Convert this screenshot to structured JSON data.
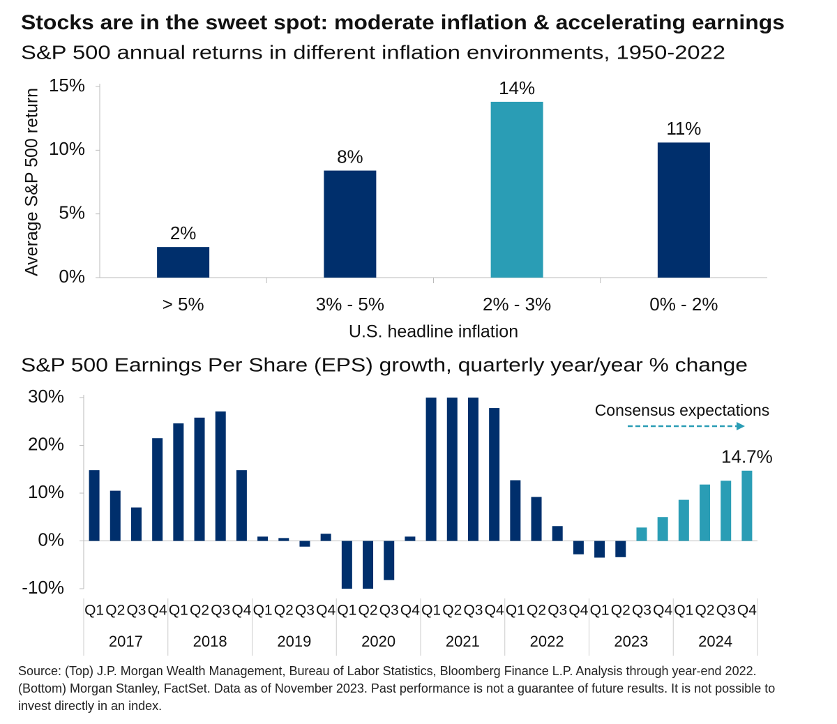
{
  "title": "Stocks are in the sweet spot: moderate inflation & accelerating earnings",
  "source": "Source: (Top) J.P. Morgan Wealth Management, Bureau of Labor Statistics, Bloomberg Finance L.P. Analysis through year-end 2022. (Bottom) Morgan Stanley, FactSet. Data as of November 2023. Past performance is not a guarantee of future results. It is not possible to invest directly in an index.",
  "chart_data": [
    {
      "type": "bar",
      "title": "S&P 500 annual returns in different inflation environments, 1950-2022",
      "ylabel": "Average S&P 500 return",
      "xlabel": "U.S. headline inflation",
      "categories": [
        "> 5%",
        "3% - 5%",
        "2% - 3%",
        "0% - 2%"
      ],
      "values": [
        2.4,
        8.4,
        13.8,
        10.6
      ],
      "value_labels": [
        "2%",
        "8%",
        "14%",
        "11%"
      ],
      "colors": [
        "#002f6c",
        "#002f6c",
        "#2a9db5",
        "#002f6c"
      ],
      "ylim": [
        0,
        15
      ],
      "yticks": [
        {
          "value": 0,
          "label": "0%"
        },
        {
          "value": 5,
          "label": "5%"
        },
        {
          "value": 10,
          "label": "10%"
        },
        {
          "value": 15,
          "label": "15%"
        }
      ],
      "grid": false
    },
    {
      "type": "bar",
      "title": "S&P 500 Earnings Per Share (EPS) growth, quarterly year/year % change",
      "categories": [
        "Q1",
        "Q2",
        "Q3",
        "Q4",
        "Q1",
        "Q2",
        "Q3",
        "Q4",
        "Q1",
        "Q2",
        "Q3",
        "Q4",
        "Q1",
        "Q2",
        "Q3",
        "Q4",
        "Q1",
        "Q2",
        "Q3",
        "Q4",
        "Q1",
        "Q2",
        "Q3",
        "Q4",
        "Q1",
        "Q2",
        "Q3",
        "Q4",
        "Q1",
        "Q2",
        "Q3",
        "Q4"
      ],
      "x_groups": [
        "2017",
        "2018",
        "2019",
        "2020",
        "2021",
        "2022",
        "2023",
        "2024"
      ],
      "values": [
        14.8,
        10.5,
        7.0,
        21.5,
        24.6,
        25.8,
        27.1,
        14.8,
        0.9,
        0.6,
        -1.2,
        1.5,
        -10,
        -10,
        -8.2,
        0.9,
        30,
        30,
        30,
        27.8,
        12.7,
        9.2,
        3.1,
        -2.8,
        -3.5,
        -3.4,
        2.8,
        5.0,
        8.6,
        11.8,
        12.6,
        14.7
      ],
      "value_labels": [
        null,
        null,
        null,
        null,
        null,
        null,
        null,
        null,
        null,
        null,
        null,
        null,
        null,
        null,
        null,
        null,
        null,
        null,
        null,
        null,
        null,
        null,
        null,
        null,
        null,
        null,
        null,
        null,
        null,
        null,
        null,
        "14.7%"
      ],
      "colors": [
        "#002f6c",
        "#002f6c",
        "#002f6c",
        "#002f6c",
        "#002f6c",
        "#002f6c",
        "#002f6c",
        "#002f6c",
        "#002f6c",
        "#002f6c",
        "#002f6c",
        "#002f6c",
        "#002f6c",
        "#002f6c",
        "#002f6c",
        "#002f6c",
        "#002f6c",
        "#002f6c",
        "#002f6c",
        "#002f6c",
        "#002f6c",
        "#002f6c",
        "#002f6c",
        "#002f6c",
        "#002f6c",
        "#002f6c",
        "#2a9db5",
        "#2a9db5",
        "#2a9db5",
        "#2a9db5",
        "#2a9db5",
        "#2a9db5"
      ],
      "annotation": "Consensus expectations",
      "annotation_color": "#2a9db5",
      "ylim": [
        -10,
        30
      ],
      "yticks": [
        {
          "value": -10,
          "label": "-10%"
        },
        {
          "value": 0,
          "label": "0%"
        },
        {
          "value": 10,
          "label": "10%"
        },
        {
          "value": 20,
          "label": "20%"
        },
        {
          "value": 30,
          "label": "30%"
        }
      ],
      "grid": false
    }
  ]
}
